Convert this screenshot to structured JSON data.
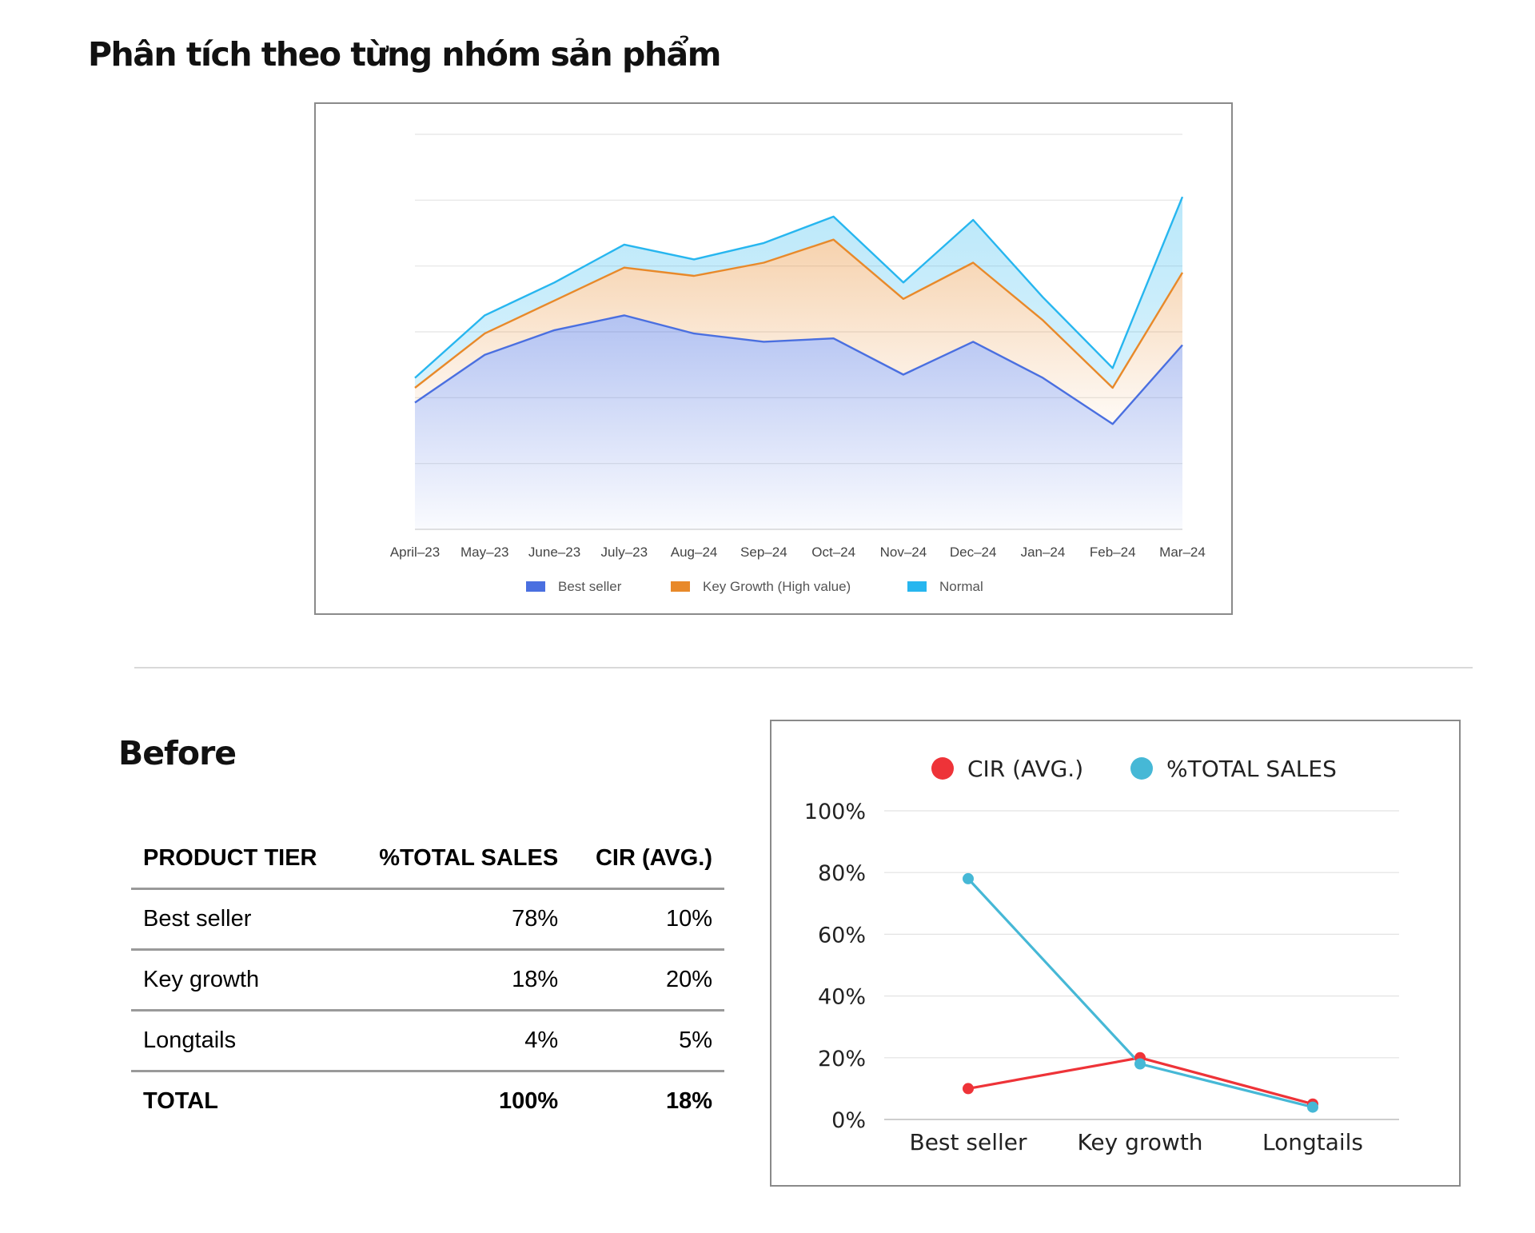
{
  "page": {
    "title": "Phân tích theo từng nhóm sản phẩm",
    "before_label": "Before"
  },
  "colors": {
    "best_seller": "#4a6fe0",
    "key_growth": "#e8892a",
    "normal": "#27b6ef",
    "cir": "#ee3338",
    "total_sales": "#46b8d6",
    "highlight": "#fcef9c"
  },
  "chart_data": [
    {
      "type": "area",
      "stacked": true,
      "categories": [
        "April–23",
        "May–23",
        "June–23",
        "July–23",
        "Aug–24",
        "Sep–24",
        "Oct–24",
        "Nov–24",
        "Dec–24",
        "Jan–24",
        "Feb–24",
        "Mar–24"
      ],
      "series": [
        {
          "name": "Best seller",
          "values": [
            38.5,
            53,
            60.5,
            65,
            59.5,
            57,
            58,
            47,
            57,
            46,
            32,
            56
          ]
        },
        {
          "name": "Key Growth (High value)",
          "values": [
            4.5,
            6.5,
            9,
            14.5,
            17.5,
            24,
            30,
            23,
            24,
            17.5,
            11,
            22
          ]
        },
        {
          "name": "Normal",
          "values": [
            3,
            5.5,
            5.5,
            7,
            5,
            6,
            7,
            5,
            13,
            7,
            6,
            23
          ]
        }
      ],
      "ylim": [
        0,
        120
      ],
      "grid": true,
      "y_ticks_visible": false,
      "legend_position": "bottom"
    },
    {
      "type": "line",
      "categories": [
        "Best seller",
        "Key growth",
        "Longtails"
      ],
      "series": [
        {
          "name": "CIR (AVG.)",
          "values": [
            10,
            20,
            5
          ]
        },
        {
          "name": "%TOTAL SALES",
          "values": [
            78,
            18,
            4
          ]
        }
      ],
      "y_ticks": [
        "0%",
        "20%",
        "40%",
        "60%",
        "80%",
        "100%"
      ],
      "ylim": [
        0,
        100
      ],
      "grid": true,
      "legend_position": "top"
    }
  ],
  "table": {
    "headers": [
      "PRODUCT TIER",
      "%TOTAL SALES",
      "CIR (AVG.)"
    ],
    "rows": [
      [
        "Best seller",
        "78%",
        "10%"
      ],
      [
        "Key growth",
        "18%",
        "20%"
      ],
      [
        "Longtails",
        "4%",
        "5%"
      ]
    ],
    "total": [
      "TOTAL",
      "100%",
      "18%"
    ]
  }
}
